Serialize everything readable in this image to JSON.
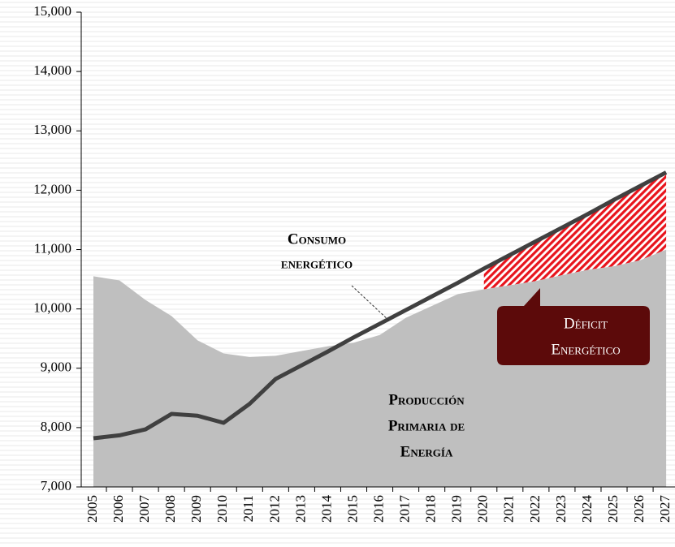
{
  "chart_data": {
    "type": "area_line",
    "categories": [
      "2005",
      "2006",
      "2007",
      "2008",
      "2009",
      "2010",
      "2011",
      "2012",
      "2013",
      "2014",
      "2015",
      "2016",
      "2017",
      "2018",
      "2019",
      "2020",
      "2021",
      "2022",
      "2023",
      "2024",
      "2025",
      "2026",
      "2027"
    ],
    "series": [
      {
        "color": "#bfbfbf",
        "values": [
          10550,
          10480,
          10150,
          9880,
          9470,
          9250,
          9190,
          9210,
          9290,
          9370,
          9430,
          9560,
          9850,
          10050,
          10250,
          10330,
          10400,
          10470,
          10570,
          10660,
          10720,
          10820,
          11000
        ]
      },
      {
        "color": "#404040",
        "values": [
          7820,
          7870,
          7970,
          8230,
          8200,
          8080,
          8400,
          8820,
          9050,
          9280,
          9520,
          9750,
          9980,
          10210,
          10440,
          10680,
          10910,
          11140,
          11370,
          11600,
          11840,
          12070,
          12300
        ]
      }
    ],
    "ylim": [
      7000,
      15000
    ],
    "yticks": [
      {
        "value": 7000,
        "label": "7,000"
      },
      {
        "value": 8000,
        "label": "8,000"
      },
      {
        "value": 9000,
        "label": "9,000"
      },
      {
        "value": 10000,
        "label": "10,000"
      },
      {
        "value": 11000,
        "label": "11,000"
      },
      {
        "value": 12000,
        "label": "12,000"
      },
      {
        "value": 13000,
        "label": "13,000"
      },
      {
        "value": 14000,
        "label": "14,000"
      },
      {
        "value": 15000,
        "label": "15,000"
      }
    ],
    "annotations": [
      {
        "lines": [
          "Consumo",
          "energético"
        ]
      },
      {
        "lines": [
          "Producción",
          "Primaria de",
          "Energía"
        ]
      },
      {
        "lines": [
          "Déficit",
          "Energético"
        ]
      }
    ],
    "deficit_color": "#e8141c"
  }
}
